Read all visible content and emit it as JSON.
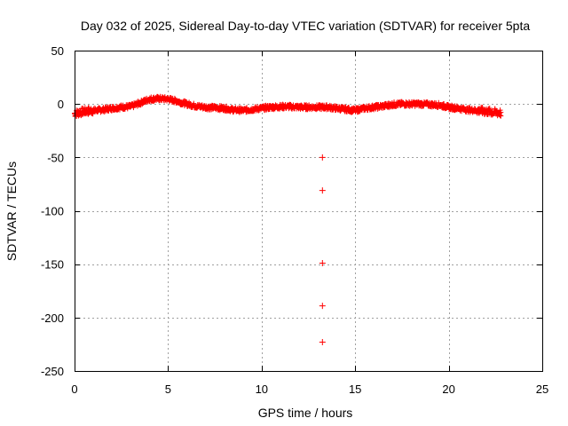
{
  "chart_data": {
    "type": "scatter",
    "title": "Day 032 of 2025, Sidereal Day-to-day VTEC variation (SDTVAR) for receiver 5pta",
    "xlabel": "GPS time / hours",
    "ylabel": "SDTVAR / TECUs",
    "xlim": [
      0,
      25
    ],
    "ylim": [
      -250,
      50
    ],
    "xticks": [
      0,
      5,
      10,
      15,
      20,
      25
    ],
    "yticks": [
      -250,
      -200,
      -150,
      -100,
      -50,
      0,
      50
    ],
    "xtick_labels": [
      "0",
      "5",
      "10",
      "15",
      "20",
      "25"
    ],
    "ytick_labels": [
      "-250",
      "-200",
      "-150",
      "-100",
      "-50",
      "0",
      "50"
    ],
    "grid": true,
    "series": [
      {
        "name": "SDTVAR",
        "color": "#ff0000",
        "marker": "plus",
        "trend": {
          "x": [
            0,
            0.5,
            1,
            1.5,
            2,
            2.5,
            3,
            3.5,
            4,
            4.5,
            5,
            5.5,
            6,
            6.5,
            7,
            7.5,
            8,
            8.5,
            9,
            9.5,
            10,
            10.5,
            11,
            11.5,
            12,
            12.5,
            13,
            13.5,
            14,
            14.5,
            15,
            15.5,
            16,
            16.5,
            17,
            17.5,
            18,
            18.5,
            19,
            19.5,
            20,
            20.5,
            21,
            21.5,
            22,
            22.5,
            22.8
          ],
          "y": [
            -9,
            -7,
            -6,
            -5.5,
            -4,
            -3,
            -2.5,
            1,
            4.5,
            5,
            4.5,
            2.5,
            0,
            -2,
            -3,
            -3.5,
            -4,
            -5.5,
            -6,
            -5,
            -4,
            -3,
            -2.5,
            -2.5,
            -3,
            -3,
            -3,
            -3,
            -4,
            -5,
            -6,
            -4,
            -3,
            -2,
            -0.5,
            0,
            0,
            0,
            -0.5,
            -1,
            -3,
            -4,
            -5.5,
            -6,
            -7,
            -8,
            -8.5
          ]
        },
        "outliers": [
          {
            "x": 13.25,
            "y": -50
          },
          {
            "x": 13.25,
            "y": -81
          },
          {
            "x": 13.25,
            "y": -149
          },
          {
            "x": 13.25,
            "y": -189
          },
          {
            "x": 13.25,
            "y": -223
          }
        ]
      }
    ]
  }
}
